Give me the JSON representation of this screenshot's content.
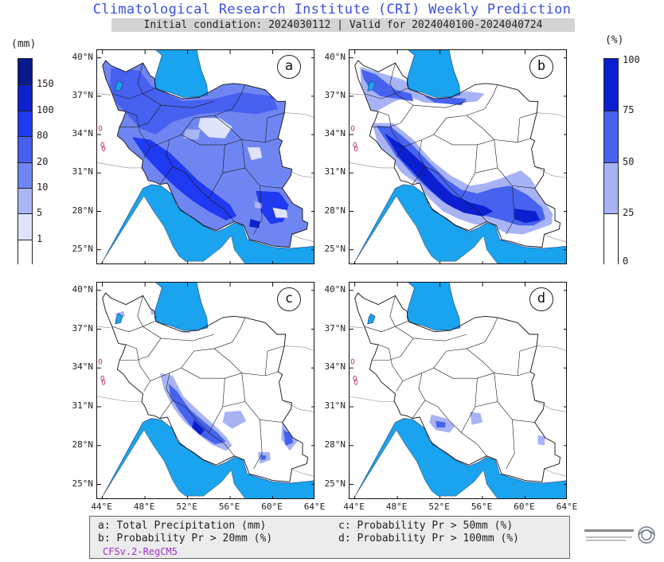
{
  "title": "Climatological Research Institute (CRI) Weekly Prediction",
  "subtitle": "Initial condiation: 2024030112 | Valid for 2024040100-2024040724",
  "left_colorbar": {
    "unit": "(mm)",
    "levels": [
      "150",
      "100",
      "80",
      "20",
      "10",
      "5",
      "1"
    ],
    "colors": [
      "#0a1a8c",
      "#0c22cc",
      "#1f3af0",
      "#4660f0",
      "#6f86f2",
      "#a8b6f6",
      "#e0e4fb",
      "#ffffff"
    ]
  },
  "right_colorbar": {
    "unit": "(%)",
    "levels": [
      "100",
      "75",
      "50",
      "25",
      "0"
    ],
    "colors": [
      "#0c1fd0",
      "#4662ee",
      "#a7b3f5",
      "#ffffff"
    ]
  },
  "panels": [
    {
      "id": "a",
      "label": "a"
    },
    {
      "id": "b",
      "label": "b"
    },
    {
      "id": "c",
      "label": "c"
    },
    {
      "id": "d",
      "label": "d"
    }
  ],
  "lat_labels": [
    "40°N",
    "37°N",
    "34°N",
    "31°N",
    "28°N",
    "25°N"
  ],
  "lon_labels": [
    "44°E",
    "48°E",
    "52°E",
    "56°E",
    "60°E",
    "64°E"
  ],
  "legend": {
    "a": "a: Total Precipitation (mm)",
    "b": "b: Probability Pr > 20mm (%)",
    "c": "c: Probability Pr > 50mm (%)",
    "d": "d: Probability Pr > 100mm (%)",
    "model": "CFSv.2-RegCM5"
  },
  "colors": {
    "water": "#1aa3ee",
    "title": "#3a4fe0"
  }
}
